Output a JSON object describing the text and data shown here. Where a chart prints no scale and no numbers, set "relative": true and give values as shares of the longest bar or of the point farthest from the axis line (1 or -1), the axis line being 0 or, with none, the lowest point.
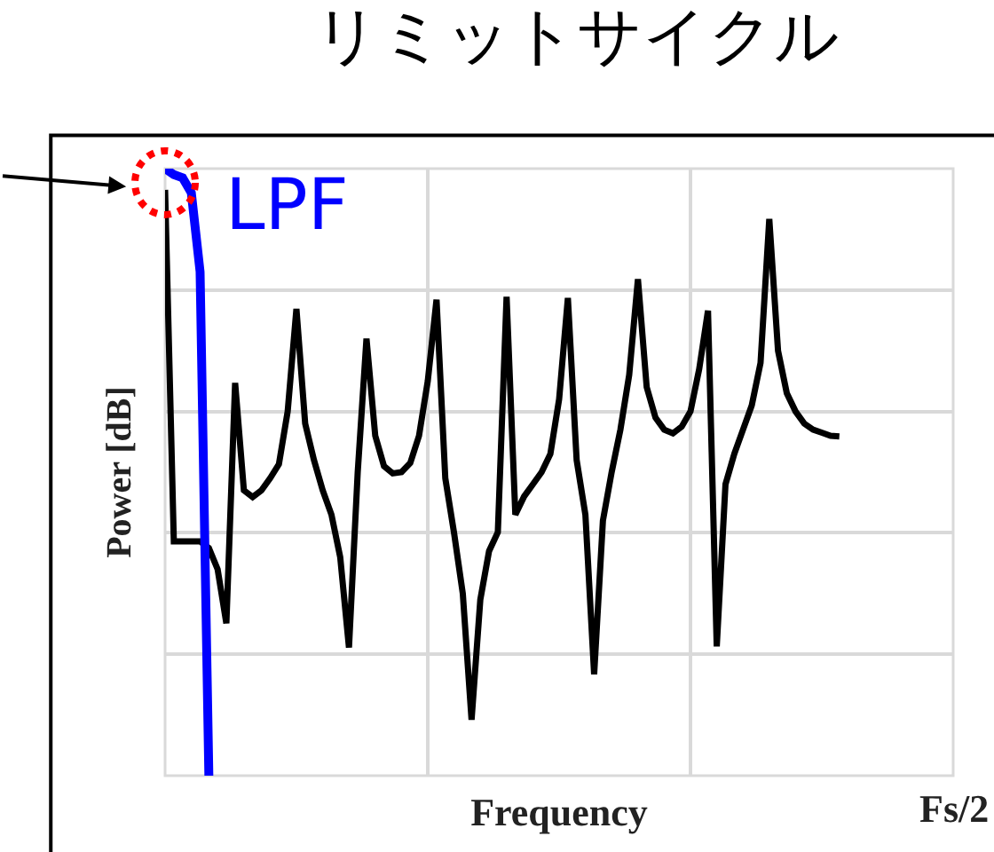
{
  "chart_data": {
    "type": "line",
    "title": "リミットサイクル",
    "xlabel": "Frequency",
    "ylabel": "Power [dB]",
    "relative": true,
    "grid": true,
    "marker": "none",
    "line_style": "solid",
    "categories": [
      null,
      null,
      null,
      null,
      null,
      null,
      null,
      null,
      null,
      null,
      null,
      null,
      null,
      null,
      null,
      null,
      null,
      null,
      null,
      null,
      null,
      null,
      null,
      null,
      null,
      null,
      null,
      null,
      null,
      null,
      null,
      null,
      null,
      null,
      null,
      null,
      null,
      null,
      null,
      null,
      null,
      null,
      null,
      null,
      null,
      null,
      null,
      null,
      null,
      null,
      null,
      null,
      null,
      null,
      null,
      null,
      null,
      null,
      null,
      null,
      null,
      null,
      null,
      null,
      null,
      null,
      null,
      null,
      null,
      null,
      null,
      null,
      null,
      null,
      null,
      null,
      null,
      null,
      null,
      null,
      null,
      null,
      null,
      null,
      null,
      null,
      null,
      null,
      null,
      null,
      null
    ],
    "annotations": [
      "Fs/2"
    ],
    "series": [
      {
        "color": "#000000",
        "values": [
          0.965,
          0.386,
          0.386,
          0.386,
          0.386,
          0.375,
          0.34,
          0.251,
          0.647,
          0.47,
          0.459,
          0.47,
          0.49,
          0.513,
          0.6,
          0.769,
          0.58,
          0.52,
          0.47,
          0.43,
          0.36,
          0.211,
          0.5,
          0.72,
          0.56,
          0.51,
          0.498,
          0.5,
          0.515,
          0.56,
          0.65,
          0.784,
          0.49,
          0.4,
          0.3,
          0.092,
          0.29,
          0.37,
          0.401,
          0.789,
          0.43,
          0.46,
          0.48,
          0.5,
          0.53,
          0.62,
          0.787,
          0.52,
          0.43,
          0.167,
          0.42,
          0.5,
          0.57,
          0.66,
          0.818,
          0.64,
          0.59,
          0.57,
          0.564,
          0.575,
          0.6,
          0.67,
          0.766,
          0.213,
          0.48,
          0.53,
          0.57,
          0.61,
          0.68,
          0.917,
          0.7,
          0.63,
          0.6,
          0.58,
          0.57,
          0.565,
          0.56,
          0.559,
          null,
          null,
          null,
          null,
          null,
          null,
          null,
          null,
          null,
          null,
          null,
          null,
          null
        ]
      },
      {
        "name": "LPF",
        "color": "#0000ff",
        "values": [
          1.0,
          0.99,
          0.985,
          0.96,
          0.83,
          0,
          null,
          null,
          null,
          null,
          null,
          null,
          null,
          null,
          null,
          null,
          null,
          null,
          null,
          null,
          null,
          null,
          null,
          null,
          null,
          null,
          null,
          null,
          null,
          null,
          null,
          null,
          null,
          null,
          null,
          null,
          null,
          null,
          null,
          null,
          null,
          null,
          null,
          null,
          null,
          null,
          null,
          null,
          null,
          null,
          null,
          null,
          null,
          null,
          null,
          null,
          null,
          null,
          null,
          null,
          null,
          null,
          null,
          null,
          null,
          null,
          null,
          null,
          null,
          null,
          null,
          null,
          null,
          null,
          null,
          null,
          null,
          null,
          null,
          null,
          null,
          null,
          null,
          null,
          null,
          null,
          null,
          null,
          null,
          null,
          null
        ]
      }
    ]
  }
}
